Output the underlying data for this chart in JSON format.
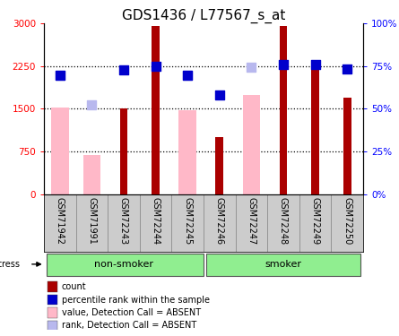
{
  "title": "GDS1436 / L77567_s_at",
  "samples": [
    "GSM71942",
    "GSM71991",
    "GSM72243",
    "GSM72244",
    "GSM72245",
    "GSM72246",
    "GSM72247",
    "GSM72248",
    "GSM72249",
    "GSM72250"
  ],
  "count": [
    0,
    0,
    1500,
    2950,
    0,
    1000,
    0,
    2950,
    2300,
    1700
  ],
  "value_absent": [
    1530,
    680,
    0,
    0,
    1470,
    0,
    1750,
    0,
    0,
    0
  ],
  "rank_present": [
    2090,
    0,
    2180,
    2250,
    2090,
    1750,
    0,
    2280,
    2280,
    2200
  ],
  "rank_absent": [
    2090,
    1570,
    0,
    0,
    2090,
    0,
    2230,
    0,
    0,
    0
  ],
  "ylim_left": [
    0,
    3000
  ],
  "ylim_right": [
    0,
    100
  ],
  "yticks_left": [
    0,
    750,
    1500,
    2250,
    3000
  ],
  "yticks_right": [
    0,
    25,
    50,
    75,
    100
  ],
  "ytick_labels_left": [
    "0",
    "750",
    "1500",
    "2250",
    "3000"
  ],
  "ytick_labels_right": [
    "0%",
    "25%",
    "50%",
    "75%",
    "100%"
  ],
  "group_labels": [
    "non-smoker",
    "smoker"
  ],
  "color_count": "#aa0000",
  "color_value_absent": "#ffb8c8",
  "color_rank_present": "#0000cc",
  "color_rank_absent": "#b8b8ee",
  "legend_items": [
    {
      "label": "count",
      "color": "#aa0000"
    },
    {
      "label": "percentile rank within the sample",
      "color": "#0000cc"
    },
    {
      "label": "value, Detection Call = ABSENT",
      "color": "#ffb8c8"
    },
    {
      "label": "rank, Detection Call = ABSENT",
      "color": "#b8b8ee"
    }
  ],
  "stress_label": "stress",
  "title_fontsize": 11,
  "tick_fontsize": 7.5,
  "label_fontsize": 7,
  "group_fontsize": 8
}
